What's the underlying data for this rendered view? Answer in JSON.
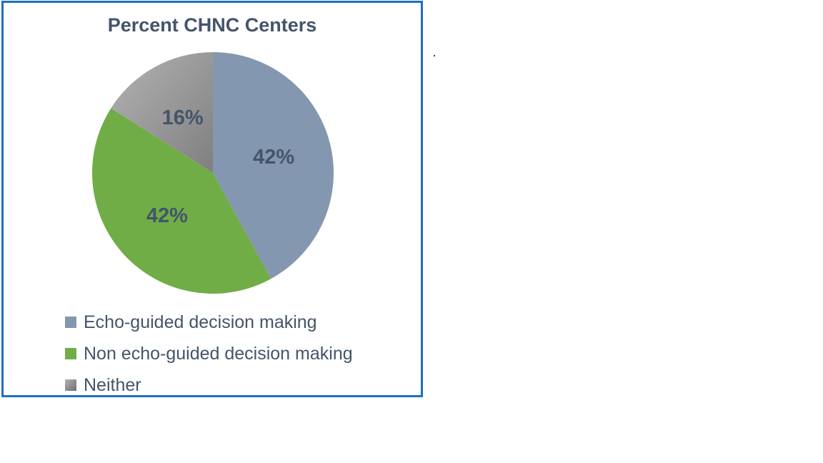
{
  "chart_data": {
    "type": "pie",
    "title": "Percent CHNC Centers",
    "categories": [
      "Echo-guided decision making",
      "Non echo-guided decision making",
      "Neither"
    ],
    "values": [
      42,
      42,
      16
    ],
    "labels": [
      "42%",
      "42%",
      "16%"
    ],
    "colors": [
      "#8497b0",
      "#70ad47",
      "#9a9a9a"
    ],
    "legend": "bottom"
  }
}
